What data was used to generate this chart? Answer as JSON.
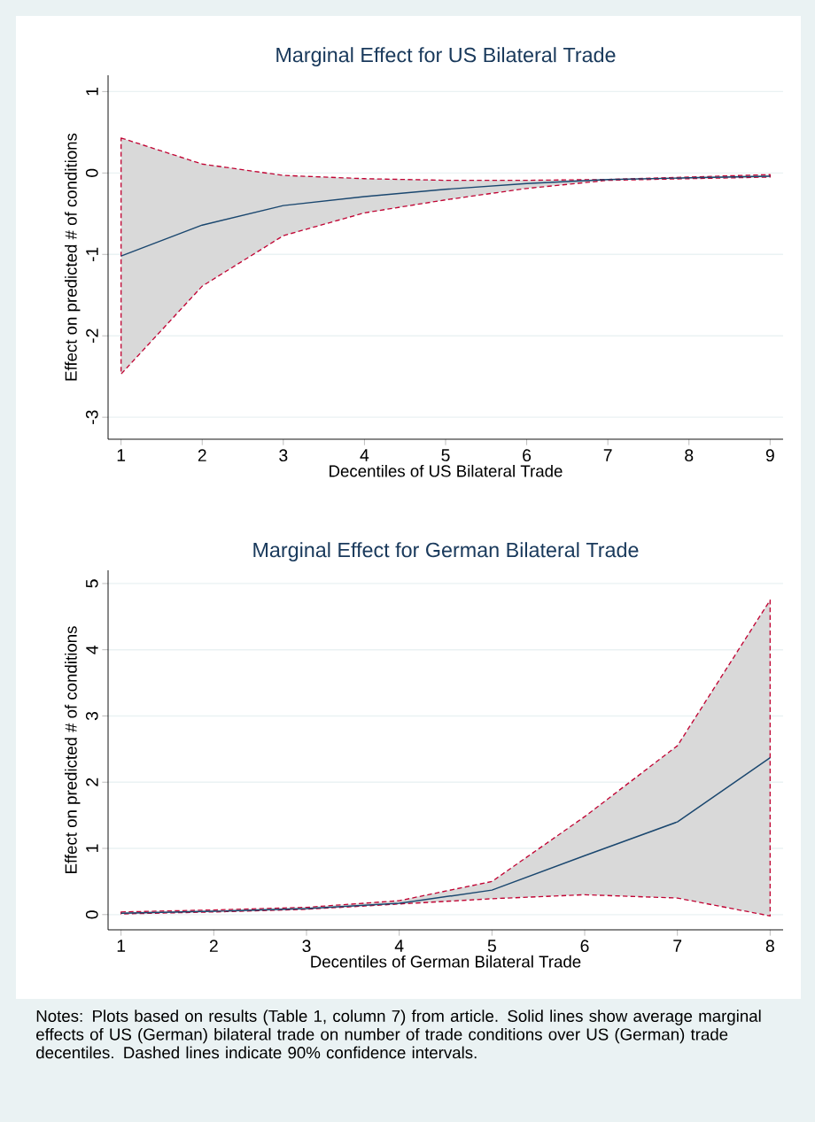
{
  "chart_data": [
    {
      "type": "line",
      "title": "Marginal Effect for US Bilateral Trade",
      "xlabel": "Decentiles of US Bilateral Trade",
      "ylabel": "Effect on predicted # of conditions",
      "x": [
        1,
        2,
        3,
        4,
        5,
        6,
        7,
        8,
        9
      ],
      "series": [
        {
          "color": "#1a476f",
          "values": [
            -1.02,
            -0.64,
            -0.4,
            -0.29,
            -0.2,
            -0.13,
            -0.08,
            -0.06,
            -0.04
          ],
          "lower": [
            -2.47,
            -1.39,
            -0.77,
            -0.49,
            -0.33,
            -0.19,
            -0.09,
            -0.07,
            -0.05
          ],
          "upper": [
            0.43,
            0.11,
            -0.03,
            -0.07,
            -0.09,
            -0.09,
            -0.08,
            -0.05,
            -0.02
          ]
        }
      ],
      "xlim": [
        0.84,
        9.16
      ],
      "xticks": [
        1,
        2,
        3,
        4,
        5,
        6,
        7,
        8,
        9
      ],
      "ylim": [
        -3.27,
        1.2
      ],
      "yticks": [
        -3,
        -2,
        -1,
        0,
        1
      ],
      "grid": "y",
      "line_style": "solid",
      "marker": "none"
    },
    {
      "type": "line",
      "title": "Marginal Effect for German Bilateral Trade",
      "xlabel": "Decentiles of German Bilateral Trade",
      "ylabel": "Effect on predicted # of conditions",
      "x": [
        1,
        2,
        3,
        4,
        5,
        6,
        7,
        8
      ],
      "series": [
        {
          "color": "#1a476f",
          "values": [
            0.02,
            0.05,
            0.09,
            0.17,
            0.37,
            0.89,
            1.4,
            2.37
          ],
          "lower": [
            0.01,
            0.04,
            0.08,
            0.16,
            0.24,
            0.3,
            0.25,
            -0.02
          ],
          "upper": [
            0.04,
            0.07,
            0.11,
            0.21,
            0.5,
            1.48,
            2.55,
            4.75
          ]
        }
      ],
      "xlim": [
        0.86,
        8.14
      ],
      "xticks": [
        1,
        2,
        3,
        4,
        5,
        6,
        7,
        8
      ],
      "ylim": [
        -0.23,
        5.2
      ],
      "yticks": [
        0,
        1,
        2,
        3,
        4,
        5
      ],
      "grid": "y",
      "line_style": "solid",
      "marker": "none",
      "annotations": [
        "Notes: Plots based on results (Table 1, column 7) from article. Solid lines show average marginal effects of US (German) bilateral trade on number of trade conditions over US (German) trade decentiles. Dashed lines indicate 90% confidence intervals."
      ]
    }
  ]
}
